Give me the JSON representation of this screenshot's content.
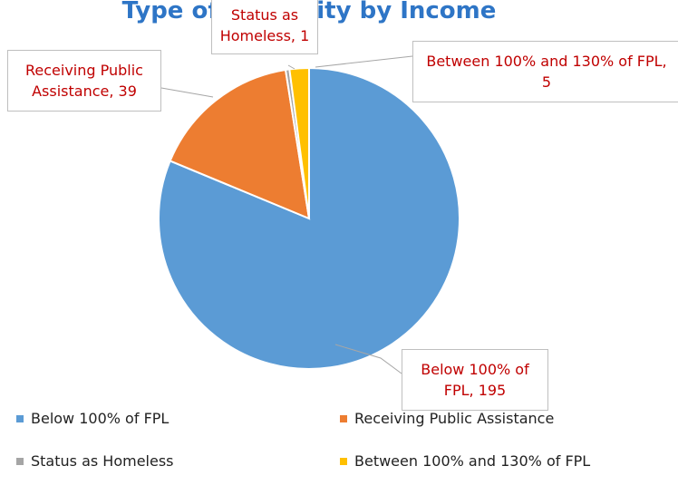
{
  "chart_data": {
    "type": "pie",
    "title": "Type of Eligibility by Income",
    "categories": [
      "Below 100% of FPL",
      "Receiving Public Assistance",
      "Status as Homeless",
      "Between 100% and 130% of FPL"
    ],
    "values": [
      195,
      39,
      1,
      5
    ],
    "value_labels": [
      "Below 100% of FPL, 195",
      "Receiving Public Assistance, 39",
      "Status as Homeless, 1",
      "Between 100% and 130% of FPL, 5"
    ],
    "colors": [
      "#5b9bd5",
      "#ed7d31",
      "#a5a5a5",
      "#ffc000"
    ],
    "legend": "bottom"
  }
}
